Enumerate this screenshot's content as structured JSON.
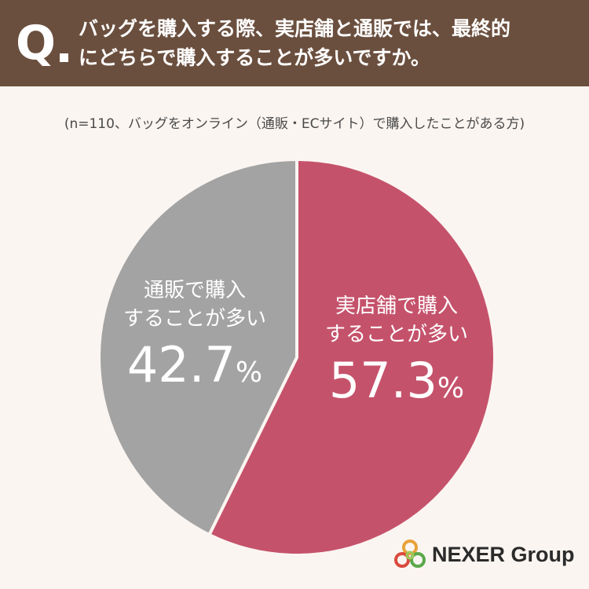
{
  "header": {
    "q_mark": "Q",
    "question_line1": "バッグを購入する際、実店舗と通販では、最終的",
    "question_line2": "にどちらで購入することが多いですか。"
  },
  "note": "(n=110、バッグをオンライン（通販・ECサイト）で購入したことがある方)",
  "chart_data": {
    "type": "pie",
    "slices": [
      {
        "name": "実店舗で購入することが多い",
        "label_line1": "実店舗で購入",
        "label_line2": "することが多い",
        "value": 57.3,
        "value_text": "57.3",
        "unit": "%",
        "color": "#c5526b"
      },
      {
        "name": "通販で購入することが多い",
        "label_line1": "通販で購入",
        "label_line2": "することが多い",
        "value": 42.7,
        "value_text": "42.7",
        "unit": "%",
        "color": "#a3a3a3"
      }
    ],
    "start_angle": "top",
    "direction": "clockwise"
  },
  "logo": {
    "text": "NEXER Group",
    "colors": [
      "#e8a33a",
      "#d94a3c",
      "#5aa84a",
      "#9aca5a"
    ]
  }
}
